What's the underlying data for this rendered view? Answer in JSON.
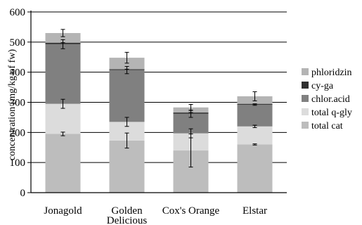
{
  "chart_data": {
    "type": "bar",
    "stacked": true,
    "categories": [
      "Jonagold",
      "Golden Delicious",
      "Cox's Orange",
      "Elstar"
    ],
    "ylabel": "concentration (mg/kg of fw)",
    "xlabel": "",
    "ylim": [
      0,
      600
    ],
    "yticks": [
      0,
      100,
      200,
      300,
      400,
      500,
      600
    ],
    "grid": true,
    "legend_position": "right",
    "series": [
      {
        "name": "total cat",
        "color": "#bdbdbd",
        "values": [
          195,
          173,
          140,
          160
        ],
        "err": [
          6,
          25,
          55,
          2
        ]
      },
      {
        "name": "total q-gly",
        "color": "#dcdcdc",
        "values": [
          100,
          62,
          57,
          60
        ],
        "err": [
          15,
          15,
          15,
          4
        ]
      },
      {
        "name": "chlor.acid",
        "color": "#808080",
        "values": [
          198,
          172,
          65,
          72
        ],
        "err": [
          15,
          12,
          12,
          2
        ]
      },
      {
        "name": "cy-ga",
        "color": "#303030",
        "values": [
          5,
          3,
          4,
          3
        ],
        "err": [
          0,
          0,
          0,
          0
        ]
      },
      {
        "name": "phloridzin",
        "color": "#b4b4b4",
        "values": [
          32,
          38,
          17,
          25
        ],
        "err": [
          12,
          18,
          10,
          15
        ]
      }
    ]
  }
}
